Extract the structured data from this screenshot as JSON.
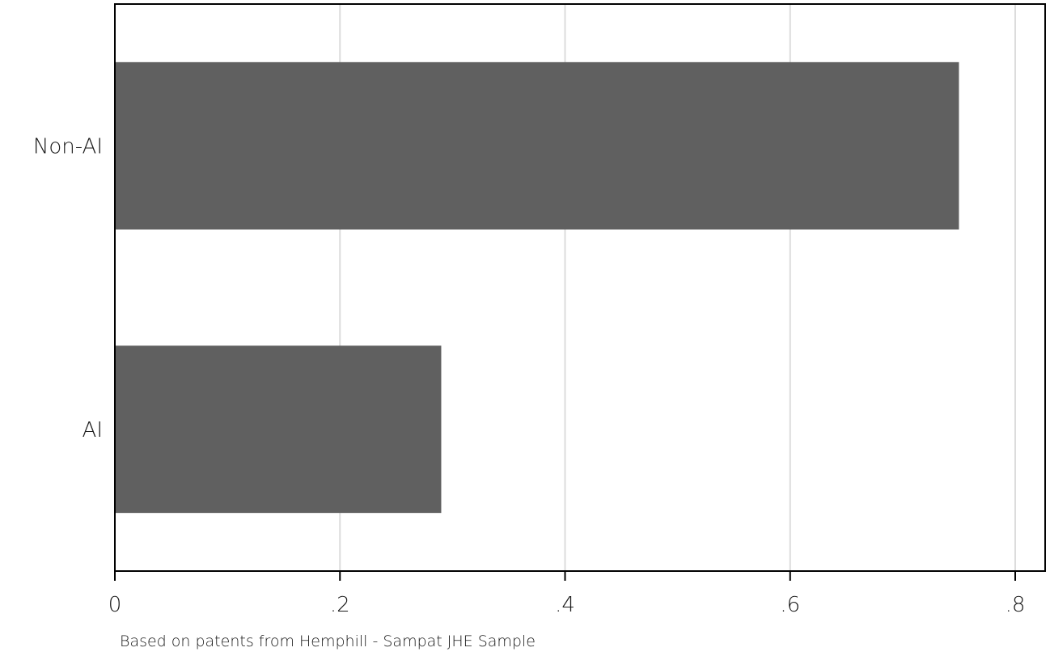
{
  "chart_data": {
    "type": "bar",
    "orientation": "horizontal",
    "categories": [
      "Non-AI",
      "AI"
    ],
    "values": [
      0.75,
      0.29
    ],
    "xlim": [
      0,
      0.8
    ],
    "x_ticks": [
      0,
      0.2,
      0.4,
      0.6,
      0.8
    ],
    "x_tick_labels": [
      "0",
      ".2",
      ".4",
      ".6",
      ".8"
    ],
    "grid": true,
    "note": "Based on patents from Hemphill - Sampat JHE Sample",
    "colors": {
      "bar": "#606060",
      "grid": "#dcdcdc",
      "axis": "#000000",
      "background": "#ffffff"
    }
  }
}
